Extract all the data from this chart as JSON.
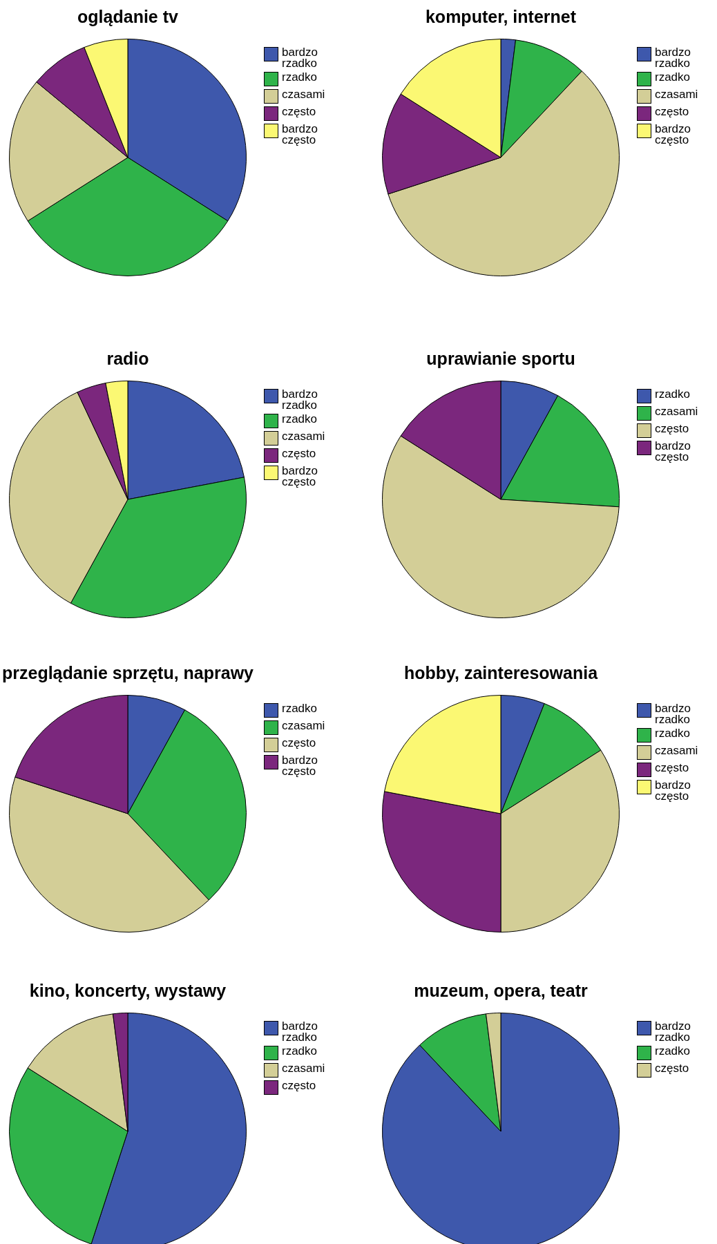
{
  "chart_data": [
    {
      "type": "pie",
      "title": "oglądanie tv",
      "legend": "right",
      "categories": [
        "bardzo rzadko",
        "rzadko",
        "czasami",
        "często",
        "bardzo często"
      ],
      "values": [
        34,
        32,
        20,
        8,
        6
      ],
      "colors": [
        "#3e58ac",
        "#2fb34a",
        "#d3ce97",
        "#7b277d",
        "#fbf873"
      ]
    },
    {
      "type": "pie",
      "title": "komputer, internet",
      "legend": "right",
      "categories": [
        "bardzo rzadko",
        "rzadko",
        "czasami",
        "często",
        "bardzo często"
      ],
      "values": [
        2,
        10,
        58,
        14,
        16
      ],
      "colors": [
        "#3e58ac",
        "#2fb34a",
        "#d3ce97",
        "#7b277d",
        "#fbf873"
      ]
    },
    {
      "type": "pie",
      "title": "radio",
      "legend": "right",
      "categories": [
        "bardzo rzadko",
        "rzadko",
        "czasami",
        "często",
        "bardzo często"
      ],
      "values": [
        22,
        36,
        35,
        4,
        3
      ],
      "colors": [
        "#3e58ac",
        "#2fb34a",
        "#d3ce97",
        "#7b277d",
        "#fbf873"
      ]
    },
    {
      "type": "pie",
      "title": "uprawianie sportu",
      "legend": "right",
      "categories": [
        "rzadko",
        "czasami",
        "często",
        "bardzo często"
      ],
      "values": [
        8,
        18,
        58,
        16
      ],
      "colors": [
        "#3e58ac",
        "#2fb34a",
        "#d3ce97",
        "#7b277d"
      ]
    },
    {
      "type": "pie",
      "title": "przeglądanie sprzętu, naprawy",
      "legend": "right",
      "categories": [
        "rzadko",
        "czasami",
        "często",
        "bardzo często"
      ],
      "values": [
        8,
        30,
        42,
        20
      ],
      "colors": [
        "#3e58ac",
        "#2fb34a",
        "#d3ce97",
        "#7b277d"
      ]
    },
    {
      "type": "pie",
      "title": "hobby, zainteresowania",
      "legend": "right",
      "categories": [
        "bardzo rzadko",
        "rzadko",
        "czasami",
        "często",
        "bardzo często"
      ],
      "values": [
        6,
        10,
        34,
        28,
        22
      ],
      "colors": [
        "#3e58ac",
        "#2fb34a",
        "#d3ce97",
        "#7b277d",
        "#fbf873"
      ]
    },
    {
      "type": "pie",
      "title": "kino, koncerty, wystawy",
      "legend": "right",
      "categories": [
        "bardzo rzadko",
        "rzadko",
        "czasami",
        "często"
      ],
      "values": [
        55,
        29,
        14,
        2
      ],
      "colors": [
        "#3e58ac",
        "#2fb34a",
        "#d3ce97",
        "#7b277d"
      ]
    },
    {
      "type": "pie",
      "title": "muzeum, opera, teatr",
      "legend": "right",
      "categories": [
        "bardzo rzadko",
        "rzadko",
        "często"
      ],
      "values": [
        88,
        10,
        2
      ],
      "colors": [
        "#3e58ac",
        "#2fb34a",
        "#d3ce97"
      ]
    }
  ]
}
